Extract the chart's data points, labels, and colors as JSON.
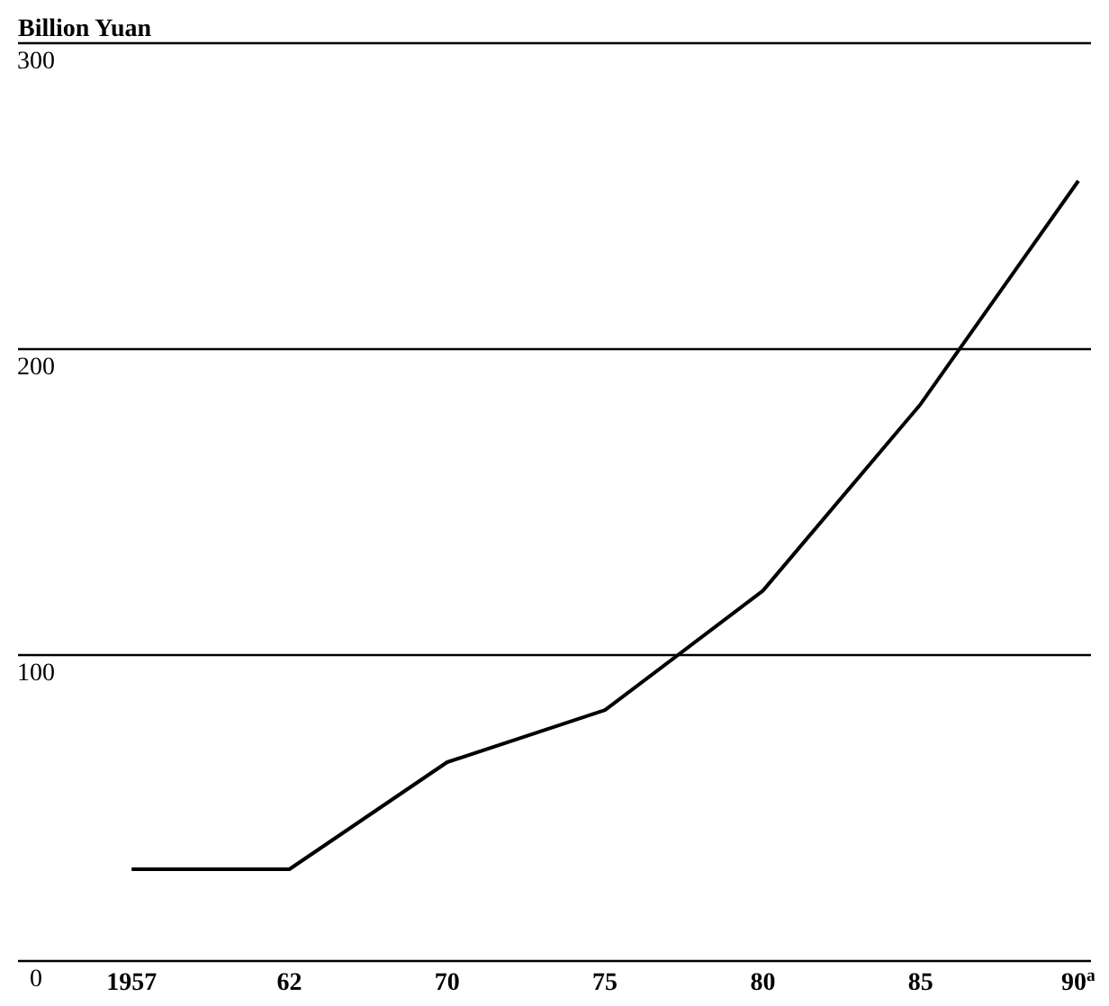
{
  "chart_data": {
    "type": "line",
    "ylabel": "Billion Yuan",
    "categories": [
      "1957",
      "62",
      "70",
      "75",
      "80",
      "85",
      "90$^{a}$"
    ],
    "series": [
      {
        "color": "#000000",
        "values": [
          30,
          30,
          65,
          82,
          121,
          182,
          255
        ]
      }
    ],
    "ylim": [
      0,
      300
    ],
    "yticks": [
      0,
      100,
      200,
      300
    ],
    "grid": "y",
    "marker": "none",
    "line_style": "solid"
  }
}
